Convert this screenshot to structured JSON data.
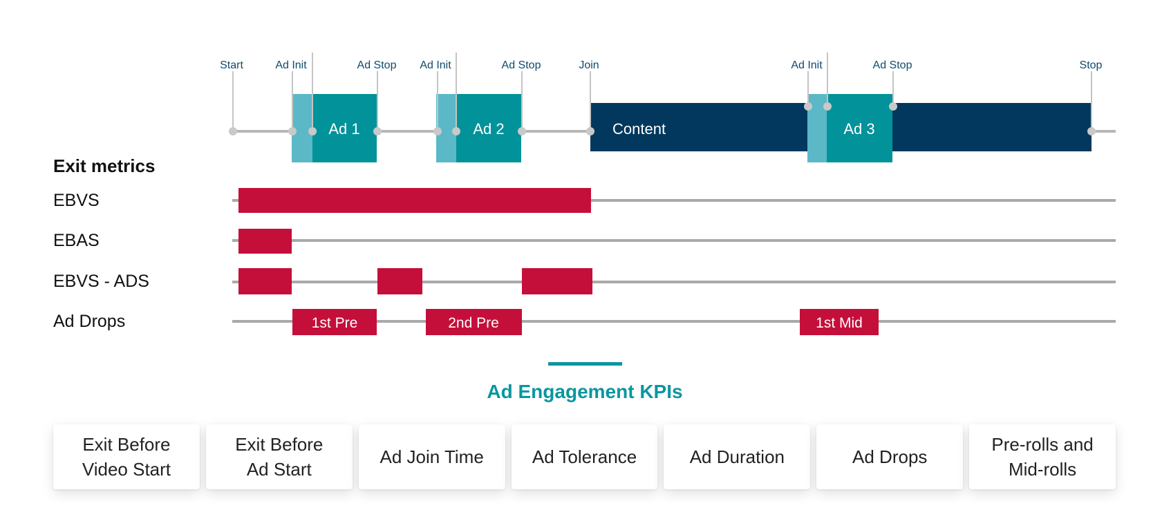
{
  "timeline": {
    "markers": [
      {
        "label": "Start"
      },
      {
        "label": "Ad Init"
      },
      {
        "label": "Ad Stop"
      },
      {
        "label": "Ad Init"
      },
      {
        "label": "Ad Stop"
      },
      {
        "label": "Join"
      },
      {
        "label": "Ad Init"
      },
      {
        "label": "Ad Stop"
      },
      {
        "label": "Stop"
      }
    ],
    "segments": {
      "ad1": "Ad 1",
      "ad2": "Ad 2",
      "content": "Content",
      "ad3": "Ad 3"
    }
  },
  "exit_metrics": {
    "title": "Exit metrics",
    "rows": [
      "EBVS",
      "EBAS",
      "EBVS - ADS",
      "Ad Drops"
    ],
    "drops": [
      "1st Pre",
      "2nd Pre",
      "1st Mid"
    ]
  },
  "kpis": {
    "title": "Ad Engagement KPIs",
    "cards": [
      "Exit Before\nVideo Start",
      "Exit Before\nAd Start",
      "Ad Join Time",
      "Ad Tolerance",
      "Ad Duration",
      "Ad Drops",
      "Pre-rolls and\nMid-rolls"
    ]
  },
  "colors": {
    "dark_navy": "#02385e",
    "teal": "#02929a",
    "light_teal": "#5bb8c6",
    "crimson": "#c40f3a",
    "track_gray": "#a9a9a9",
    "kpi_accent": "#0a96a0"
  }
}
